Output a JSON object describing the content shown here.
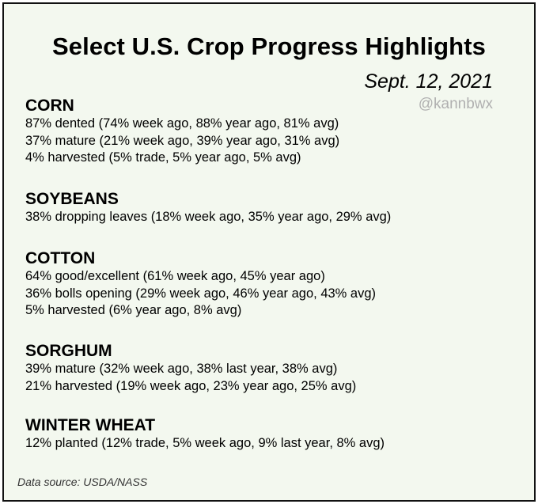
{
  "title": "Select U.S. Crop Progress Highlights",
  "date": "Sept. 12, 2021",
  "handle": "@kannbwx",
  "sections": [
    {
      "name": "CORN",
      "lines": [
        "87% dented (74% week ago, 88% year ago, 81% avg)",
        "37% mature (21% week ago, 39% year ago, 31% avg)",
        "4% harvested (5% trade, 5% year ago, 5% avg)"
      ]
    },
    {
      "name": "SOYBEANS",
      "lines": [
        "38% dropping leaves (18% week ago, 35% year ago, 29% avg)"
      ]
    },
    {
      "name": "COTTON",
      "lines": [
        "64% good/excellent (61% week ago, 45% year ago)",
        "36% bolls opening (29% week ago, 46% year ago, 43% avg)",
        "5% harvested (6% year ago, 8% avg)"
      ]
    },
    {
      "name": "SORGHUM",
      "lines": [
        "39% mature (32% week ago, 38% last year, 38% avg)",
        "21% harvested (19% week ago, 23% year ago, 25% avg)"
      ]
    },
    {
      "name": "WINTER WHEAT",
      "lines": [
        "12% planted (12% trade, 5% week ago, 9% last year, 8% avg)"
      ]
    }
  ],
  "source": "Data source: USDA/NASS",
  "colors": {
    "background": "#f3f8ef",
    "border": "#111111",
    "handle": "#b0b0b0"
  }
}
